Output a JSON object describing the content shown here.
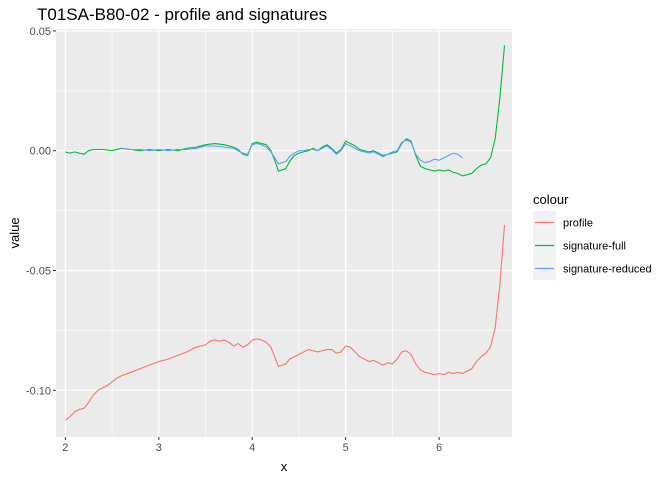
{
  "chart_data": {
    "type": "line",
    "title": "T01SA-B80-02 - profile and signatures",
    "xlabel": "x",
    "ylabel": "value",
    "xlim": [
      1.9,
      6.78
    ],
    "ylim": [
      -0.1195,
      0.0508
    ],
    "x_ticks": [
      2,
      3,
      4,
      5,
      6
    ],
    "x_tick_labels": [
      "2",
      "3",
      "4",
      "5",
      "6"
    ],
    "y_ticks": [
      0.05,
      0.0,
      -0.05,
      -0.1
    ],
    "y_tick_labels": [
      "0.05",
      "0.00",
      "-0.05",
      "-0.10"
    ],
    "grid": true,
    "legend": {
      "title": "colour",
      "position": "right"
    },
    "series": [
      {
        "name": "profile",
        "color": "#F8766D",
        "points": [
          [
            2.0,
            -0.1125
          ],
          [
            2.05,
            -0.111
          ],
          [
            2.1,
            -0.109
          ],
          [
            2.15,
            -0.108
          ],
          [
            2.2,
            -0.1075
          ],
          [
            2.25,
            -0.105
          ],
          [
            2.3,
            -0.102
          ],
          [
            2.35,
            -0.1
          ],
          [
            2.4,
            -0.099
          ],
          [
            2.45,
            -0.098
          ],
          [
            2.5,
            -0.0965
          ],
          [
            2.55,
            -0.095
          ],
          [
            2.6,
            -0.094
          ],
          [
            2.7,
            -0.0925
          ],
          [
            2.8,
            -0.091
          ],
          [
            2.9,
            -0.0895
          ],
          [
            3.0,
            -0.088
          ],
          [
            3.1,
            -0.087
          ],
          [
            3.2,
            -0.0855
          ],
          [
            3.3,
            -0.084
          ],
          [
            3.4,
            -0.082
          ],
          [
            3.5,
            -0.081
          ],
          [
            3.55,
            -0.0795
          ],
          [
            3.6,
            -0.079
          ],
          [
            3.65,
            -0.0795
          ],
          [
            3.7,
            -0.079
          ],
          [
            3.75,
            -0.08
          ],
          [
            3.8,
            -0.0815
          ],
          [
            3.85,
            -0.0805
          ],
          [
            3.9,
            -0.082
          ],
          [
            3.95,
            -0.081
          ],
          [
            4.0,
            -0.079
          ],
          [
            4.05,
            -0.0785
          ],
          [
            4.1,
            -0.079
          ],
          [
            4.15,
            -0.08
          ],
          [
            4.2,
            -0.082
          ],
          [
            4.25,
            -0.087
          ],
          [
            4.28,
            -0.09
          ],
          [
            4.32,
            -0.0895
          ],
          [
            4.36,
            -0.089
          ],
          [
            4.4,
            -0.087
          ],
          [
            4.45,
            -0.086
          ],
          [
            4.5,
            -0.085
          ],
          [
            4.55,
            -0.084
          ],
          [
            4.6,
            -0.083
          ],
          [
            4.65,
            -0.0835
          ],
          [
            4.7,
            -0.084
          ],
          [
            4.75,
            -0.0835
          ],
          [
            4.8,
            -0.083
          ],
          [
            4.85,
            -0.083
          ],
          [
            4.9,
            -0.0845
          ],
          [
            4.95,
            -0.084
          ],
          [
            5.0,
            -0.0815
          ],
          [
            5.05,
            -0.082
          ],
          [
            5.1,
            -0.084
          ],
          [
            5.15,
            -0.086
          ],
          [
            5.2,
            -0.087
          ],
          [
            5.25,
            -0.088
          ],
          [
            5.3,
            -0.0875
          ],
          [
            5.35,
            -0.0885
          ],
          [
            5.4,
            -0.0895
          ],
          [
            5.45,
            -0.0885
          ],
          [
            5.5,
            -0.089
          ],
          [
            5.55,
            -0.087
          ],
          [
            5.6,
            -0.084
          ],
          [
            5.65,
            -0.0835
          ],
          [
            5.7,
            -0.085
          ],
          [
            5.75,
            -0.089
          ],
          [
            5.8,
            -0.0915
          ],
          [
            5.85,
            -0.0925
          ],
          [
            5.9,
            -0.093
          ],
          [
            5.95,
            -0.0935
          ],
          [
            6.0,
            -0.093
          ],
          [
            6.05,
            -0.0935
          ],
          [
            6.1,
            -0.0925
          ],
          [
            6.15,
            -0.093
          ],
          [
            6.2,
            -0.0925
          ],
          [
            6.25,
            -0.093
          ],
          [
            6.3,
            -0.092
          ],
          [
            6.35,
            -0.091
          ],
          [
            6.4,
            -0.088
          ],
          [
            6.45,
            -0.086
          ],
          [
            6.5,
            -0.0845
          ],
          [
            6.55,
            -0.082
          ],
          [
            6.6,
            -0.074
          ],
          [
            6.65,
            -0.056
          ],
          [
            6.7,
            -0.031
          ]
        ]
      },
      {
        "name": "signature-full",
        "color": "#00BA38",
        "points": [
          [
            2.0,
            -0.0005
          ],
          [
            2.05,
            -0.001
          ],
          [
            2.1,
            -0.0005
          ],
          [
            2.15,
            -0.001
          ],
          [
            2.2,
            -0.0015
          ],
          [
            2.25,
            0.0
          ],
          [
            2.3,
            0.0005
          ],
          [
            2.4,
            0.0005
          ],
          [
            2.5,
            0.0
          ],
          [
            2.6,
            0.001
          ],
          [
            2.7,
            0.0005
          ],
          [
            2.8,
            0.0
          ],
          [
            2.9,
            0.0005
          ],
          [
            3.0,
            0.0
          ],
          [
            3.1,
            0.0005
          ],
          [
            3.2,
            0.0
          ],
          [
            3.3,
            0.001
          ],
          [
            3.4,
            0.0015
          ],
          [
            3.5,
            0.0025
          ],
          [
            3.6,
            0.003
          ],
          [
            3.7,
            0.0025
          ],
          [
            3.8,
            0.0015
          ],
          [
            3.85,
            0.0005
          ],
          [
            3.9,
            -0.0015
          ],
          [
            3.95,
            -0.002
          ],
          [
            4.0,
            0.003
          ],
          [
            4.05,
            0.0035
          ],
          [
            4.1,
            0.003
          ],
          [
            4.15,
            0.0025
          ],
          [
            4.2,
            0.0
          ],
          [
            4.25,
            -0.005
          ],
          [
            4.28,
            -0.0085
          ],
          [
            4.32,
            -0.008
          ],
          [
            4.36,
            -0.0075
          ],
          [
            4.4,
            -0.0045
          ],
          [
            4.45,
            -0.002
          ],
          [
            4.5,
            -0.001
          ],
          [
            4.55,
            -0.0005
          ],
          [
            4.6,
            0.0
          ],
          [
            4.65,
            0.001
          ],
          [
            4.7,
            0.0
          ],
          [
            4.75,
            0.0015
          ],
          [
            4.8,
            0.0025
          ],
          [
            4.85,
            0.001
          ],
          [
            4.9,
            -0.001
          ],
          [
            4.95,
            0.0005
          ],
          [
            5.0,
            0.004
          ],
          [
            5.05,
            0.003
          ],
          [
            5.1,
            0.002
          ],
          [
            5.15,
            0.0005
          ],
          [
            5.2,
            0.0
          ],
          [
            5.25,
            -0.0005
          ],
          [
            5.3,
            0.0
          ],
          [
            5.35,
            -0.001
          ],
          [
            5.4,
            -0.002
          ],
          [
            5.45,
            -0.0015
          ],
          [
            5.5,
            -0.001
          ],
          [
            5.55,
            -0.0005
          ],
          [
            5.6,
            0.003
          ],
          [
            5.65,
            0.005
          ],
          [
            5.7,
            0.004
          ],
          [
            5.75,
            -0.002
          ],
          [
            5.8,
            -0.0065
          ],
          [
            5.85,
            -0.0075
          ],
          [
            5.9,
            -0.008
          ],
          [
            5.95,
            -0.0085
          ],
          [
            6.0,
            -0.008
          ],
          [
            6.05,
            -0.0085
          ],
          [
            6.1,
            -0.008
          ],
          [
            6.15,
            -0.009
          ],
          [
            6.2,
            -0.0095
          ],
          [
            6.25,
            -0.0105
          ],
          [
            6.3,
            -0.01
          ],
          [
            6.35,
            -0.0095
          ],
          [
            6.4,
            -0.0075
          ],
          [
            6.45,
            -0.006
          ],
          [
            6.5,
            -0.0055
          ],
          [
            6.55,
            -0.003
          ],
          [
            6.6,
            0.005
          ],
          [
            6.65,
            0.022
          ],
          [
            6.7,
            0.044
          ]
        ]
      },
      {
        "name": "signature-reduced",
        "color": "#619CFF",
        "points": [
          [
            2.6,
            0.001
          ],
          [
            2.7,
            0.0005
          ],
          [
            2.8,
            0.0005
          ],
          [
            2.9,
            0.0
          ],
          [
            3.0,
            0.0005
          ],
          [
            3.1,
            0.0
          ],
          [
            3.2,
            0.0005
          ],
          [
            3.3,
            0.0005
          ],
          [
            3.4,
            0.001
          ],
          [
            3.5,
            0.002
          ],
          [
            3.6,
            0.002
          ],
          [
            3.7,
            0.0015
          ],
          [
            3.8,
            0.001
          ],
          [
            3.85,
            0.0
          ],
          [
            3.9,
            -0.001
          ],
          [
            3.95,
            -0.0015
          ],
          [
            4.0,
            0.0025
          ],
          [
            4.05,
            0.003
          ],
          [
            4.1,
            0.0025
          ],
          [
            4.15,
            0.0015
          ],
          [
            4.2,
            -0.0005
          ],
          [
            4.25,
            -0.0035
          ],
          [
            4.28,
            -0.0055
          ],
          [
            4.32,
            -0.005
          ],
          [
            4.36,
            -0.0045
          ],
          [
            4.4,
            -0.0025
          ],
          [
            4.45,
            -0.001
          ],
          [
            4.5,
            0.0
          ],
          [
            4.55,
            0.0
          ],
          [
            4.6,
            0.0005
          ],
          [
            4.65,
            0.0005
          ],
          [
            4.7,
            0.0
          ],
          [
            4.75,
            0.001
          ],
          [
            4.8,
            0.002
          ],
          [
            4.85,
            0.0005
          ],
          [
            4.9,
            -0.0015
          ],
          [
            4.95,
            0.0
          ],
          [
            5.0,
            0.003
          ],
          [
            5.05,
            0.002
          ],
          [
            5.1,
            0.001
          ],
          [
            5.15,
            0.0
          ],
          [
            5.2,
            -0.0005
          ],
          [
            5.25,
            -0.001
          ],
          [
            5.3,
            -0.0005
          ],
          [
            5.35,
            -0.0015
          ],
          [
            5.4,
            -0.0025
          ],
          [
            5.45,
            -0.0015
          ],
          [
            5.5,
            -0.0005
          ],
          [
            5.55,
            0.0
          ],
          [
            5.6,
            0.0035
          ],
          [
            5.65,
            0.0045
          ],
          [
            5.7,
            0.0035
          ],
          [
            5.75,
            -0.0015
          ],
          [
            5.8,
            -0.004
          ],
          [
            5.85,
            -0.005
          ],
          [
            5.9,
            -0.0045
          ],
          [
            5.95,
            -0.0035
          ],
          [
            6.0,
            -0.004
          ],
          [
            6.05,
            -0.003
          ],
          [
            6.1,
            -0.002
          ],
          [
            6.15,
            -0.001
          ],
          [
            6.2,
            -0.0015
          ],
          [
            6.25,
            -0.003
          ]
        ]
      }
    ]
  }
}
